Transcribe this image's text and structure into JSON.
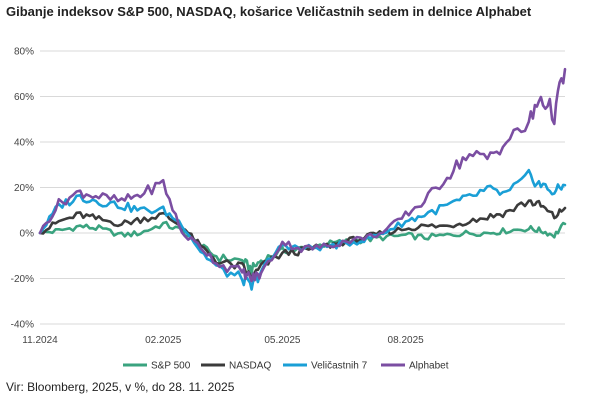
{
  "chart_data": {
    "type": "line",
    "title": "Gibanje indeksov S&P 500, NASDAQ, košarice Veličastnih sedem in delnice Alphabet",
    "source": "Vir: Bloomberg, 2025, v %, do 28. 11. 2025",
    "xlabel": "",
    "ylabel": "",
    "x_tick_labels": [
      "11.2024",
      "02.2025",
      "05.2025",
      "08.2025"
    ],
    "x_range": [
      "2024-11-01",
      "2025-11-28"
    ],
    "x_ticks": [
      "2024-11-01",
      "2025-02-01",
      "2025-05-01",
      "2025-08-01"
    ],
    "y_ticks": [
      -40,
      -20,
      0,
      20,
      40,
      60,
      80
    ],
    "y_tick_labels": [
      "-40%",
      "-20%",
      "0%",
      "20%",
      "40%",
      "60%",
      "80%"
    ],
    "ylim": [
      -40,
      80
    ],
    "grid": "horizontal",
    "legend_position": "bottom",
    "dates": [
      "2024-11-01",
      "2024-11-15",
      "2024-12-01",
      "2024-12-15",
      "2025-01-01",
      "2025-01-15",
      "2025-02-01",
      "2025-02-15",
      "2025-03-01",
      "2025-03-15",
      "2025-04-01",
      "2025-04-08",
      "2025-04-15",
      "2025-05-01",
      "2025-05-15",
      "2025-06-01",
      "2025-06-15",
      "2025-07-01",
      "2025-07-15",
      "2025-08-01",
      "2025-08-15",
      "2025-09-01",
      "2025-09-15",
      "2025-10-01",
      "2025-10-15",
      "2025-11-01",
      "2025-11-10",
      "2025-11-20",
      "2025-11-28"
    ],
    "series": [
      {
        "name": "S&P 500",
        "color": "#3aa37f",
        "values": [
          0,
          1,
          3,
          2,
          -1,
          0,
          4,
          1,
          -6,
          -11,
          -12,
          -16,
          -12,
          -8,
          -7,
          -5,
          -4,
          -3,
          -2,
          -1,
          -2,
          -1,
          0,
          0,
          1,
          2,
          1,
          -1,
          4
        ]
      },
      {
        "name": "NASDAQ",
        "color": "#3b3b3b",
        "values": [
          0,
          5,
          8,
          6,
          4,
          6,
          8,
          3,
          -6,
          -13,
          -15,
          -20,
          -15,
          -9,
          -8,
          -6,
          -4,
          -2,
          0,
          2,
          3,
          3,
          5,
          7,
          9,
          14,
          12,
          7,
          11
        ]
      },
      {
        "name": "Veličastnih 7",
        "color": "#1a9fd6",
        "values": [
          0,
          12,
          16,
          14,
          12,
          10,
          10,
          4,
          -8,
          -16,
          -20,
          -24,
          -17,
          -5,
          -7,
          -6,
          -5,
          -3,
          0,
          5,
          8,
          12,
          15,
          19,
          17,
          25,
          21,
          18,
          21
        ]
      },
      {
        "name": "Alphabet",
        "color": "#7b4ea2",
        "values": [
          0,
          13,
          18,
          16,
          14,
          17,
          22,
          0,
          -6,
          -14,
          -17,
          -20,
          -18,
          -4,
          -7,
          -6,
          -4,
          -2,
          0,
          8,
          14,
          25,
          34,
          33,
          40,
          48,
          60,
          52,
          72
        ]
      }
    ]
  }
}
